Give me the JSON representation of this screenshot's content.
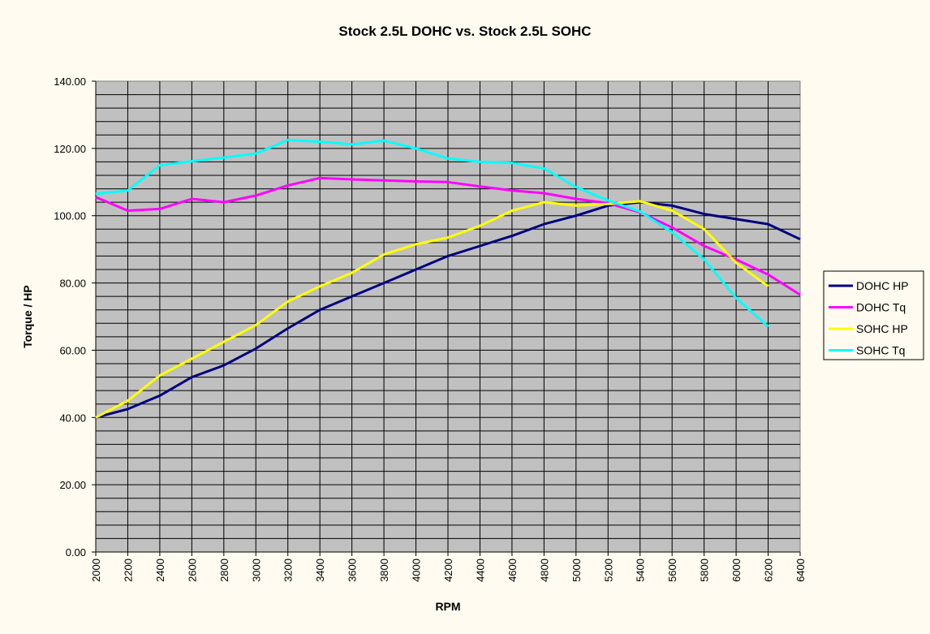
{
  "chart_data": {
    "type": "line",
    "title": "Stock 2.5L DOHC vs. Stock 2.5L SOHC",
    "xlabel": "RPM",
    "ylabel": "Torque / HP",
    "x": [
      2000,
      2200,
      2400,
      2600,
      2800,
      3000,
      3200,
      3400,
      3600,
      3800,
      4000,
      4200,
      4400,
      4600,
      4800,
      5000,
      5200,
      5400,
      5600,
      5800,
      6000,
      6200,
      6400
    ],
    "xlim": [
      2000,
      6400
    ],
    "ylim": [
      0,
      140
    ],
    "ytick_step": 20,
    "ytick_labels": [
      "0.00",
      "20.00",
      "40.00",
      "60.00",
      "80.00",
      "100.00",
      "120.00",
      "140.00"
    ],
    "grid": true,
    "legend_position": "right",
    "series": [
      {
        "name": "DOHC HP",
        "color": "#000080",
        "values": [
          40,
          42.5,
          46.5,
          52,
          55.5,
          60.5,
          66.5,
          72,
          76,
          80,
          84,
          88,
          91,
          94,
          97.5,
          100,
          103,
          104,
          103,
          100.5,
          99,
          97.5,
          93
        ]
      },
      {
        "name": "DOHC Tq",
        "color": "#ff00ff",
        "values": [
          105.5,
          101.5,
          102,
          105,
          104,
          106,
          109,
          111.2,
          110.8,
          110.5,
          110.2,
          110,
          108.7,
          107.5,
          106.7,
          105,
          103.7,
          101,
          96.5,
          91,
          87,
          82.5,
          76.5
        ]
      },
      {
        "name": "SOHC HP",
        "color": "#ffff00",
        "values": [
          40,
          45,
          52.5,
          57.5,
          62.5,
          67.5,
          74.5,
          79,
          83,
          88.5,
          91.5,
          93.5,
          97,
          101.5,
          104,
          103,
          103.5,
          104.3,
          101.5,
          96,
          86,
          79,
          null
        ]
      },
      {
        "name": "SOHC Tq",
        "color": "#00ffff",
        "values": [
          106.5,
          107.5,
          115,
          116.2,
          117.3,
          118.5,
          122.5,
          122,
          121.2,
          122.3,
          120,
          117,
          116,
          115.7,
          114,
          108.5,
          104.5,
          101.2,
          95,
          87,
          75.5,
          67,
          null
        ]
      }
    ]
  }
}
